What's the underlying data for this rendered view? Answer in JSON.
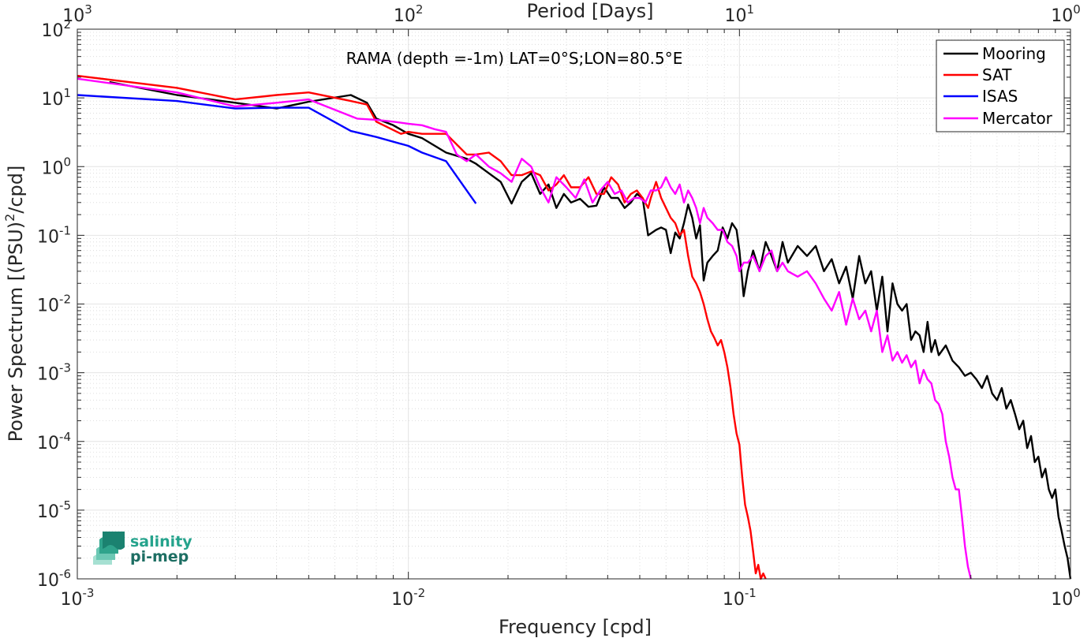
{
  "chart_data": {
    "type": "line",
    "title": "",
    "annotation": "RAMA (depth =-1m) LAT=0°S;LON=80.5°E",
    "xlabel": "Frequency [cpd]",
    "ylabel_parts": [
      "Power Spectrum [(PSU)",
      "2",
      "/cpd]"
    ],
    "top_xlabel": "Period [Days]",
    "xscale": "log",
    "yscale": "log",
    "xlim": [
      0.001,
      1
    ],
    "ylim": [
      1e-06,
      100
    ],
    "grid": true,
    "legend_position": "top-right",
    "x_ticks": [
      {
        "base": "10",
        "exp": "-3",
        "value": 0.001
      },
      {
        "base": "10",
        "exp": "-2",
        "value": 0.01
      },
      {
        "base": "10",
        "exp": "-1",
        "value": 0.1
      },
      {
        "base": "10",
        "exp": "0",
        "value": 1
      }
    ],
    "top_ticks": [
      {
        "base": "10",
        "exp": "3",
        "value": 0.001
      },
      {
        "base": "10",
        "exp": "2",
        "value": 0.01
      },
      {
        "base": "10",
        "exp": "1",
        "value": 0.1
      },
      {
        "base": "10",
        "exp": "0",
        "value": 1
      }
    ],
    "y_ticks": [
      {
        "base": "10",
        "exp": "2",
        "value": 100
      },
      {
        "base": "10",
        "exp": "1",
        "value": 10
      },
      {
        "base": "10",
        "exp": "0",
        "value": 1
      },
      {
        "base": "10",
        "exp": "-1",
        "value": 0.1
      },
      {
        "base": "10",
        "exp": "-2",
        "value": 0.01
      },
      {
        "base": "10",
        "exp": "-3",
        "value": 0.001
      },
      {
        "base": "10",
        "exp": "-4",
        "value": 0.0001
      },
      {
        "base": "10",
        "exp": "-5",
        "value": 1e-05
      },
      {
        "base": "10",
        "exp": "-6",
        "value": 1e-06
      }
    ],
    "series": [
      {
        "name": "Mooring",
        "color": "#000000",
        "x": [
          0.00125,
          0.002,
          0.003,
          0.004,
          0.005,
          0.0067,
          0.0075,
          0.008,
          0.009,
          0.01,
          0.011,
          0.013,
          0.015,
          0.016,
          0.0175,
          0.019,
          0.0205,
          0.022,
          0.0235,
          0.025,
          0.0265,
          0.028,
          0.0295,
          0.031,
          0.033,
          0.035,
          0.037,
          0.039,
          0.041,
          0.043,
          0.045,
          0.047,
          0.049,
          0.051,
          0.053,
          0.056,
          0.058,
          0.06,
          0.062,
          0.064,
          0.066,
          0.068,
          0.07,
          0.072,
          0.074,
          0.076,
          0.078,
          0.08,
          0.083,
          0.086,
          0.089,
          0.092,
          0.095,
          0.098,
          0.1,
          0.103,
          0.106,
          0.11,
          0.115,
          0.12,
          0.125,
          0.13,
          0.135,
          0.14,
          0.15,
          0.16,
          0.17,
          0.18,
          0.19,
          0.2,
          0.21,
          0.22,
          0.23,
          0.24,
          0.25,
          0.26,
          0.27,
          0.28,
          0.29,
          0.3,
          0.31,
          0.32,
          0.33,
          0.34,
          0.35,
          0.36,
          0.37,
          0.38,
          0.39,
          0.4,
          0.42,
          0.44,
          0.46,
          0.48,
          0.5,
          0.52,
          0.54,
          0.56,
          0.58,
          0.6,
          0.62,
          0.64,
          0.66,
          0.68,
          0.7,
          0.72,
          0.74,
          0.76,
          0.78,
          0.8,
          0.82,
          0.84,
          0.86,
          0.88,
          0.9,
          0.92,
          0.94,
          0.96,
          0.98,
          1.0
        ],
        "y": [
          17,
          11,
          8.5,
          7,
          8.8,
          11,
          8.5,
          5,
          4,
          3,
          2.6,
          1.6,
          1.3,
          1.1,
          0.8,
          0.6,
          0.29,
          0.6,
          0.8,
          0.4,
          0.55,
          0.25,
          0.4,
          0.3,
          0.34,
          0.26,
          0.27,
          0.5,
          0.35,
          0.35,
          0.25,
          0.3,
          0.4,
          0.35,
          0.1,
          0.12,
          0.13,
          0.12,
          0.055,
          0.11,
          0.09,
          0.15,
          0.28,
          0.18,
          0.09,
          0.14,
          0.022,
          0.04,
          0.05,
          0.06,
          0.13,
          0.09,
          0.15,
          0.12,
          0.06,
          0.013,
          0.03,
          0.06,
          0.03,
          0.08,
          0.05,
          0.03,
          0.08,
          0.04,
          0.07,
          0.05,
          0.07,
          0.03,
          0.045,
          0.02,
          0.035,
          0.012,
          0.05,
          0.02,
          0.03,
          0.008,
          0.025,
          0.004,
          0.02,
          0.01,
          0.008,
          0.01,
          0.003,
          0.004,
          0.0035,
          0.002,
          0.0055,
          0.002,
          0.003,
          0.0018,
          0.0025,
          0.0015,
          0.0012,
          0.0009,
          0.001,
          0.0008,
          0.0006,
          0.0009,
          0.0005,
          0.0004,
          0.0006,
          0.0003,
          0.0004,
          0.00025,
          0.00015,
          0.0002,
          8e-05,
          0.00012,
          5e-05,
          6e-05,
          3e-05,
          4e-05,
          2e-05,
          1.5e-05,
          2e-05,
          8e-06,
          5e-06,
          3e-06,
          2e-06,
          1e-06
        ]
      },
      {
        "name": "SAT",
        "color": "#ff0000",
        "x": [
          0.001,
          0.002,
          0.003,
          0.004,
          0.005,
          0.0067,
          0.0075,
          0.008,
          0.0095,
          0.01,
          0.011,
          0.013,
          0.015,
          0.016,
          0.0175,
          0.019,
          0.0205,
          0.022,
          0.0235,
          0.025,
          0.0265,
          0.028,
          0.0295,
          0.031,
          0.033,
          0.035,
          0.037,
          0.039,
          0.041,
          0.043,
          0.045,
          0.047,
          0.049,
          0.051,
          0.053,
          0.054,
          0.056,
          0.058,
          0.06,
          0.062,
          0.064,
          0.066,
          0.068,
          0.07,
          0.072,
          0.074,
          0.076,
          0.078,
          0.08,
          0.082,
          0.084,
          0.086,
          0.088,
          0.09,
          0.092,
          0.094,
          0.096,
          0.098,
          0.1,
          0.102,
          0.104,
          0.106,
          0.108,
          0.11,
          0.112,
          0.114,
          0.116,
          0.118,
          0.12
        ],
        "y": [
          21,
          14,
          9.5,
          11,
          12,
          9,
          8,
          4.5,
          3,
          3.2,
          3,
          3,
          1.5,
          1.5,
          1.6,
          1.2,
          0.75,
          0.75,
          0.85,
          0.75,
          0.45,
          0.55,
          0.75,
          0.5,
          0.5,
          0.7,
          0.4,
          0.4,
          0.7,
          0.55,
          0.3,
          0.4,
          0.45,
          0.35,
          0.25,
          0.35,
          0.6,
          0.35,
          0.25,
          0.18,
          0.15,
          0.1,
          0.12,
          0.05,
          0.025,
          0.02,
          0.015,
          0.01,
          0.006,
          0.004,
          0.0032,
          0.0025,
          0.003,
          0.002,
          0.0012,
          0.0006,
          0.00025,
          0.00013,
          9e-05,
          3e-05,
          1.2e-05,
          8e-06,
          5e-06,
          2.5e-06,
          1.2e-06,
          1.6e-06,
          1e-06,
          1.2e-06,
          1e-06
        ]
      },
      {
        "name": "ISAS",
        "color": "#0000ff",
        "x": [
          0.001,
          0.002,
          0.003,
          0.004,
          0.005,
          0.0067,
          0.008,
          0.01,
          0.011,
          0.013,
          0.016
        ],
        "y": [
          11,
          9,
          7,
          7.2,
          7.2,
          3.3,
          2.7,
          2.0,
          1.6,
          1.2,
          0.29
        ]
      },
      {
        "name": "Mercator",
        "color": "#ff00ff",
        "x": [
          0.001,
          0.002,
          0.003,
          0.004,
          0.005,
          0.007,
          0.008,
          0.009,
          0.01,
          0.011,
          0.012,
          0.013,
          0.014,
          0.015,
          0.016,
          0.0175,
          0.019,
          0.0205,
          0.022,
          0.0235,
          0.025,
          0.0265,
          0.028,
          0.03,
          0.032,
          0.034,
          0.036,
          0.038,
          0.04,
          0.042,
          0.044,
          0.046,
          0.048,
          0.05,
          0.052,
          0.054,
          0.056,
          0.058,
          0.06,
          0.062,
          0.064,
          0.066,
          0.068,
          0.07,
          0.072,
          0.074,
          0.076,
          0.078,
          0.08,
          0.083,
          0.086,
          0.089,
          0.092,
          0.095,
          0.098,
          0.1,
          0.103,
          0.106,
          0.11,
          0.115,
          0.12,
          0.125,
          0.13,
          0.135,
          0.14,
          0.15,
          0.16,
          0.17,
          0.18,
          0.19,
          0.2,
          0.21,
          0.22,
          0.23,
          0.24,
          0.25,
          0.26,
          0.27,
          0.28,
          0.29,
          0.3,
          0.31,
          0.32,
          0.33,
          0.34,
          0.35,
          0.36,
          0.37,
          0.38,
          0.39,
          0.4,
          0.41,
          0.42,
          0.43,
          0.44,
          0.45,
          0.46,
          0.47,
          0.48,
          0.49,
          0.5
        ],
        "y": [
          19,
          12,
          7.5,
          8.5,
          9.5,
          5,
          4.8,
          4.5,
          4.2,
          4,
          3.5,
          3.2,
          1.5,
          1.2,
          1.5,
          1.0,
          0.8,
          0.6,
          1.3,
          1.0,
          0.5,
          0.3,
          0.7,
          0.5,
          0.35,
          0.65,
          0.3,
          0.45,
          0.6,
          0.4,
          0.45,
          0.3,
          0.35,
          0.35,
          0.3,
          0.45,
          0.45,
          0.5,
          0.7,
          0.5,
          0.4,
          0.55,
          0.3,
          0.45,
          0.35,
          0.25,
          0.15,
          0.25,
          0.18,
          0.15,
          0.12,
          0.12,
          0.08,
          0.07,
          0.05,
          0.03,
          0.04,
          0.04,
          0.05,
          0.03,
          0.05,
          0.06,
          0.03,
          0.04,
          0.03,
          0.025,
          0.03,
          0.02,
          0.012,
          0.008,
          0.015,
          0.005,
          0.012,
          0.006,
          0.008,
          0.004,
          0.008,
          0.002,
          0.0035,
          0.0015,
          0.002,
          0.0014,
          0.0018,
          0.0012,
          0.0015,
          0.0007,
          0.0011,
          0.0008,
          0.0007,
          0.0004,
          0.00035,
          0.00025,
          0.0001,
          6e-05,
          3e-05,
          2e-05,
          2e-05,
          8e-06,
          3e-06,
          1.5e-06,
          1e-06
        ]
      }
    ]
  },
  "legend_items": [
    "Mooring",
    "SAT",
    "ISAS",
    "Mercator"
  ],
  "logo": {
    "line1": "salinity",
    "line2": "pi-mep"
  }
}
